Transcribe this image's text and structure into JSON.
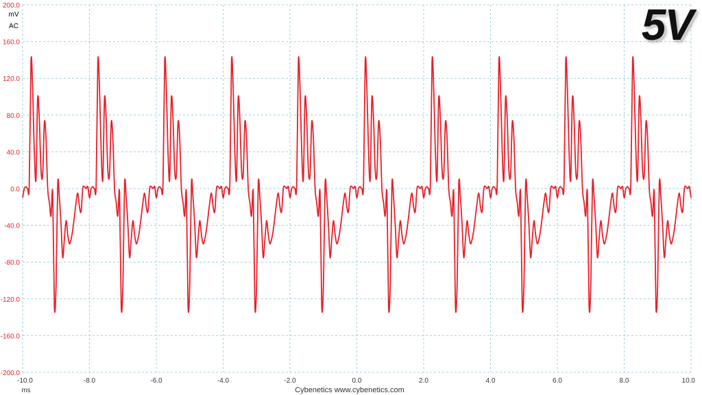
{
  "badge": "5V",
  "credit": "Cybenetics  www.cybenetics.com",
  "colors": {
    "trace": "#e8202a",
    "grid": "#9fd0dc",
    "axis_text": "#e8202a"
  },
  "chart_data": {
    "type": "line",
    "title": "",
    "xlabel": "ms",
    "ylabel": "mV",
    "ylabel_sub": "AC",
    "xlim": [
      -10.0,
      10.0
    ],
    "ylim": [
      -200.0,
      200.0
    ],
    "x_ticks": [
      "-10.0",
      "-8.0",
      "-6.0",
      "-4.0",
      "-2.0",
      "0.0",
      "2.0",
      "4.0",
      "6.0",
      "8.0",
      "10.0"
    ],
    "y_ticks": [
      "200.0",
      "160.0",
      "120.0",
      "80.0",
      "40.0",
      "0.0",
      "-40.0",
      "-80.0",
      "-120.0",
      "-160.0",
      "-200.0"
    ],
    "y_tick_values": [
      200,
      160,
      120,
      80,
      40,
      0,
      -40,
      -80,
      -120,
      -160,
      -200
    ],
    "x_tick_values": [
      -10,
      -8,
      -6,
      -4,
      -2,
      0,
      2,
      4,
      6,
      8,
      10
    ],
    "grid": true,
    "period_ms": 2.0,
    "cycle_starts_ms": [
      -10.0,
      -8.0,
      -6.0,
      -4.0,
      -2.0,
      0.0,
      2.0,
      4.0,
      6.0,
      8.0
    ],
    "series": [
      {
        "cycle_waveform": {
          "offset_ms": [
            0.0,
            0.05,
            0.1,
            0.15,
            0.2,
            0.25,
            0.3,
            0.35,
            0.4,
            0.45,
            0.5,
            0.55,
            0.6,
            0.65,
            0.7,
            0.75,
            0.8,
            0.85,
            0.9,
            0.95,
            1.0,
            1.05,
            1.1,
            1.15,
            1.2,
            1.25,
            1.3,
            1.35,
            1.4,
            1.45,
            1.5,
            1.55,
            1.6,
            1.65,
            1.7,
            1.75,
            1.8,
            1.85,
            1.9,
            1.95
          ],
          "mV": [
            -10,
            0,
            2,
            0,
            5,
            138,
            110,
            40,
            10,
            98,
            75,
            20,
            15,
            72,
            55,
            0,
            -15,
            -30,
            -5,
            -128,
            -105,
            5,
            -10,
            -40,
            -75,
            -55,
            -35,
            -50,
            -60,
            -55,
            -45,
            -30,
            -15,
            -5,
            -20,
            -25,
            0,
            2,
            0,
            2
          ]
        }
      }
    ]
  }
}
